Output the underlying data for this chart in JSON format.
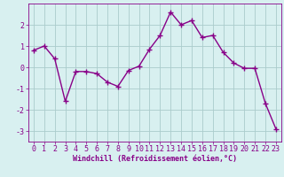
{
  "x": [
    0,
    1,
    2,
    3,
    4,
    5,
    6,
    7,
    8,
    9,
    10,
    11,
    12,
    13,
    14,
    15,
    16,
    17,
    18,
    19,
    20,
    21,
    22,
    23
  ],
  "y": [
    0.8,
    1.0,
    0.4,
    -1.6,
    -0.2,
    -0.2,
    -0.3,
    -0.7,
    -0.9,
    -0.15,
    0.05,
    0.85,
    1.5,
    2.6,
    2.0,
    2.2,
    1.4,
    1.5,
    0.7,
    0.2,
    -0.05,
    -0.05,
    -1.7,
    -2.9
  ],
  "line_color": "#880088",
  "marker": "+",
  "markersize": 4,
  "linewidth": 1.0,
  "bg_color": "#d8f0f0",
  "grid_color": "#aacccc",
  "xlabel": "Windchill (Refroidissement éolien,°C)",
  "xlabel_fontsize": 6,
  "ylim": [
    -3.5,
    3.0
  ],
  "xlim": [
    -0.5,
    23.5
  ],
  "xticks": [
    0,
    1,
    2,
    3,
    4,
    5,
    6,
    7,
    8,
    9,
    10,
    11,
    12,
    13,
    14,
    15,
    16,
    17,
    18,
    19,
    20,
    21,
    22,
    23
  ],
  "yticks": [
    -3,
    -2,
    -1,
    0,
    1,
    2
  ],
  "tick_fontsize": 6
}
